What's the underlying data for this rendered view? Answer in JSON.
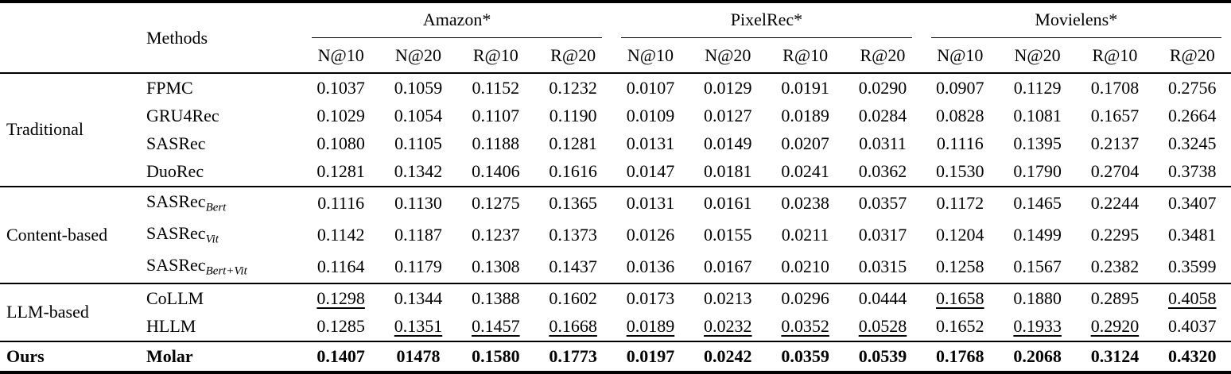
{
  "table": {
    "corner_label": "",
    "methods_header": "Methods",
    "groups": [
      {
        "label": "Amazon*",
        "metrics": [
          "N@10",
          "N@20",
          "R@10",
          "R@20"
        ]
      },
      {
        "label": "PixelRec*",
        "metrics": [
          "N@10",
          "N@20",
          "R@10",
          "R@20"
        ]
      },
      {
        "label": "Movielens*",
        "metrics": [
          "N@10",
          "N@20",
          "R@10",
          "R@20"
        ]
      }
    ],
    "row_groups": [
      {
        "label": "Traditional",
        "rows": [
          {
            "method": "FPMC",
            "values": [
              "0.1037",
              "0.1059",
              "0.1152",
              "0.1232",
              "0.0107",
              "0.0129",
              "0.0191",
              "0.0290",
              "0.0907",
              "0.1129",
              "0.1708",
              "0.2756"
            ]
          },
          {
            "method": "GRU4Rec",
            "values": [
              "0.1029",
              "0.1054",
              "0.1107",
              "0.1190",
              "0.0109",
              "0.0127",
              "0.0189",
              "0.0284",
              "0.0828",
              "0.1081",
              "0.1657",
              "0.2664"
            ]
          },
          {
            "method": "SASRec",
            "values": [
              "0.1080",
              "0.1105",
              "0.1188",
              "0.1281",
              "0.0131",
              "0.0149",
              "0.0207",
              "0.0311",
              "0.1116",
              "0.1395",
              "0.2137",
              "0.3245"
            ]
          },
          {
            "method": "DuoRec",
            "values": [
              "0.1281",
              "0.1342",
              "0.1406",
              "0.1616",
              "0.0147",
              "0.0181",
              "0.0241",
              "0.0362",
              "0.1530",
              "0.1790",
              "0.2704",
              "0.3738"
            ]
          }
        ]
      },
      {
        "label": "Content-based",
        "rows": [
          {
            "method": "SASRec",
            "method_sub": "Bert",
            "values": [
              "0.1116",
              "0.1130",
              "0.1275",
              "0.1365",
              "0.0131",
              "0.0161",
              "0.0238",
              "0.0357",
              "0.1172",
              "0.1465",
              "0.2244",
              "0.3407"
            ]
          },
          {
            "method": "SASRec",
            "method_sub": "Vit",
            "values": [
              "0.1142",
              "0.1187",
              "0.1237",
              "0.1373",
              "0.0126",
              "0.0155",
              "0.0211",
              "0.0317",
              "0.1204",
              "0.1499",
              "0.2295",
              "0.3481"
            ]
          },
          {
            "method": "SASRec",
            "method_sub": "Bert+Vit",
            "values": [
              "0.1164",
              "0.1179",
              "0.1308",
              "0.1437",
              "0.0136",
              "0.0167",
              "0.0210",
              "0.0315",
              "0.1258",
              "0.1567",
              "0.2382",
              "0.3599"
            ]
          }
        ]
      },
      {
        "label": "LLM-based",
        "rows": [
          {
            "method": "CoLLM",
            "values": [
              "0.1298",
              "0.1344",
              "0.1388",
              "0.1602",
              "0.0173",
              "0.0213",
              "0.0296",
              "0.0444",
              "0.1658",
              "0.1880",
              "0.2895",
              "0.4058"
            ],
            "underline": [
              0,
              8,
              11
            ]
          },
          {
            "method": "HLLM",
            "values": [
              "0.1285",
              "0.1351",
              "0.1457",
              "0.1668",
              "0.0189",
              "0.0232",
              "0.0352",
              "0.0528",
              "0.1652",
              "0.1933",
              "0.2920",
              "0.4037"
            ],
            "underline": [
              1,
              2,
              3,
              4,
              5,
              6,
              7,
              9,
              10
            ]
          }
        ]
      },
      {
        "label": "Ours",
        "rows": [
          {
            "method": "Molar",
            "bold": true,
            "values": [
              "0.1407",
              "01478",
              "0.1580",
              "0.1773",
              "0.0197",
              "0.0242",
              "0.0359",
              "0.0539",
              "0.1768",
              "0.2068",
              "0.3124",
              "0.4320"
            ]
          }
        ]
      }
    ]
  }
}
